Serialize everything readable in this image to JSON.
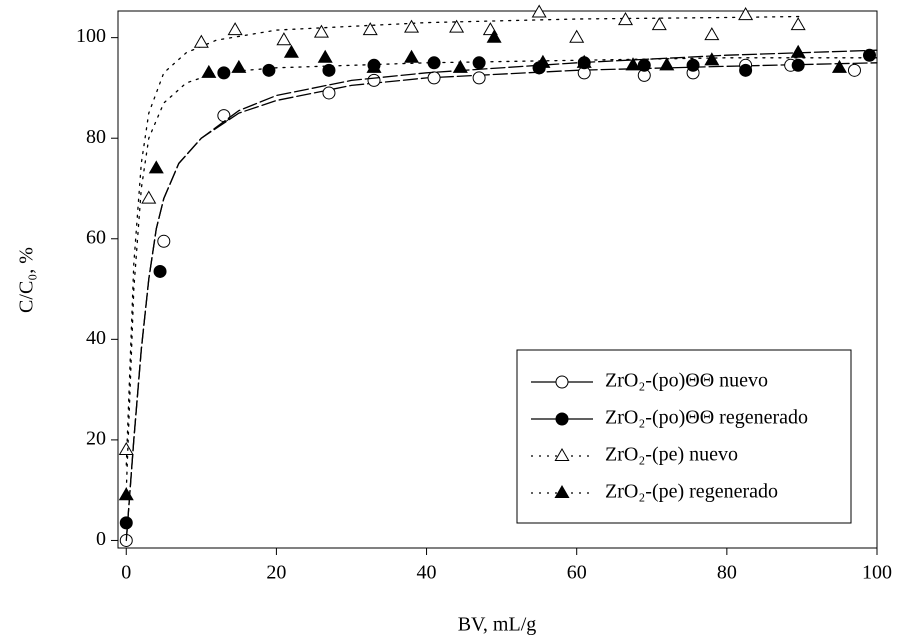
{
  "chart_data": {
    "type": "scatter",
    "xlabel": "BV, mL/g",
    "ylabel": "C/C₀, %",
    "xlim": [
      -1.1,
      100
    ],
    "ylim": [
      -1.5,
      105.3
    ],
    "xticks": [
      0,
      20,
      40,
      60,
      80,
      100
    ],
    "yticks": [
      0,
      20,
      40,
      60,
      80,
      100
    ],
    "legend": "lower right",
    "series": [
      {
        "name": "ZrO₂-(po)ΘΘ nuevo",
        "color": "#000000",
        "marker": "circle",
        "filled": false,
        "line": "dash",
        "x": [
          0,
          5,
          13,
          27,
          33,
          41,
          47,
          55,
          61,
          69,
          75.5,
          82.5,
          88.5,
          97
        ],
        "values": [
          0,
          59.5,
          84.5,
          89,
          91.5,
          92,
          92,
          94,
          93,
          92.5,
          93,
          94.5,
          94.5,
          93.5
        ],
        "fit": {
          "x": [
            0,
            1,
            2,
            3,
            4,
            5,
            7,
            10,
            15,
            20,
            30,
            40,
            60,
            80,
            100
          ],
          "values": [
            0,
            20,
            38,
            52,
            62,
            68,
            75,
            80,
            85,
            87.5,
            90.5,
            92,
            93.5,
            94.3,
            95
          ]
        }
      },
      {
        "name": "ZrO₂-(po)ΘΘ regenerado",
        "color": "#000000",
        "marker": "circle",
        "filled": true,
        "line": "dash",
        "x": [
          0,
          4.5,
          13,
          19,
          27,
          33,
          41,
          47,
          55,
          61,
          69,
          75.5,
          82.5,
          89.5,
          99
        ],
        "values": [
          3.5,
          53.5,
          93,
          93.5,
          93.5,
          94.5,
          95,
          95,
          94,
          95,
          94.5,
          94.5,
          93.5,
          94.5,
          96.5
        ],
        "fit": {
          "x": [
            0,
            1,
            2,
            3,
            4,
            5,
            7,
            10,
            15,
            20,
            30,
            40,
            60,
            80,
            100
          ],
          "values": [
            0,
            20,
            38,
            52,
            62,
            68,
            75,
            80,
            85.5,
            88.5,
            91.5,
            93,
            95,
            96.5,
            97.5
          ]
        }
      },
      {
        "name": "ZrO₂-(pe) nuevo",
        "color": "#000000",
        "marker": "triangle",
        "filled": false,
        "line": "dot",
        "x": [
          0,
          3,
          10,
          14.5,
          21,
          26,
          32.5,
          38,
          44,
          48.5,
          55,
          60,
          66.5,
          71,
          78,
          82.5,
          89.5
        ],
        "values": [
          18,
          68,
          99,
          101.5,
          99.5,
          101,
          101.5,
          102,
          102,
          101.5,
          105,
          100,
          103.5,
          102.5,
          100.5,
          104.5,
          102.5
        ],
        "fit": {
          "x": [
            0,
            1,
            2,
            3,
            5,
            8,
            12,
            20,
            40,
            60,
            80,
            90
          ],
          "values": [
            15,
            55,
            75,
            85,
            93,
            97,
            99.5,
            101.5,
            103,
            103.7,
            104,
            104.2
          ]
        }
      },
      {
        "name": "ZrO₂-(pe) regenerado",
        "color": "#000000",
        "marker": "triangle",
        "filled": true,
        "line": "dot",
        "x": [
          0,
          4,
          11,
          15,
          22,
          26.5,
          33,
          38,
          44.5,
          49,
          55.5,
          61,
          67.5,
          72,
          78,
          89.5,
          95
        ],
        "values": [
          9,
          74,
          93,
          94,
          97,
          96,
          94,
          96,
          94,
          100,
          95,
          95,
          94.5,
          94.5,
          95.5,
          97,
          94
        ],
        "fit": {
          "x": [
            0,
            1,
            2,
            3,
            5,
            8,
            12,
            20,
            40,
            60,
            80,
            100
          ],
          "values": [
            10,
            50,
            70,
            80,
            87,
            91,
            93,
            94,
            95,
            95.5,
            96,
            96
          ]
        }
      }
    ]
  }
}
